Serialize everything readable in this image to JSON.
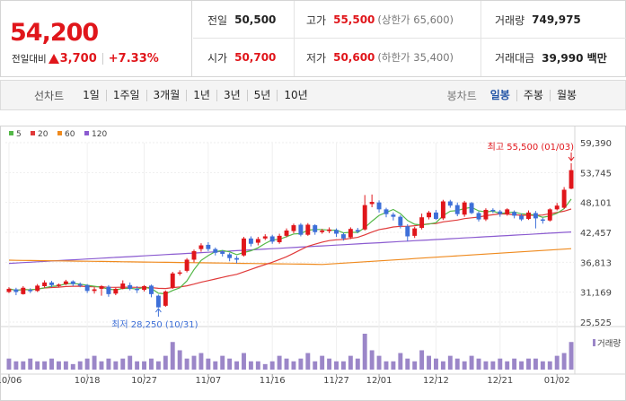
{
  "summary": {
    "price": "54,200",
    "change_label": "전일대비",
    "change_amount": "3,700",
    "change_percent": "+7.33%",
    "up_color": "#e0161b"
  },
  "stats": {
    "prev_close_label": "전일",
    "prev_close": "50,500",
    "high_label": "고가",
    "high": "55,500",
    "high_sub": "(상한가 65,600)",
    "volume_label": "거래량",
    "volume": "749,975",
    "open_label": "시가",
    "open": "50,700",
    "low_label": "저가",
    "low": "50,600",
    "low_sub": "(하한가 35,400)",
    "amount_label": "거래대금",
    "amount": "39,990 백만"
  },
  "tabs": {
    "line_label": "선차트",
    "line_tabs": [
      "1일",
      "1주일",
      "3개월",
      "1년",
      "3년",
      "5년",
      "10년"
    ],
    "candle_label": "봉차트",
    "candle_tabs": [
      "일봉",
      "주봉",
      "월봉"
    ],
    "active_candle": "일봉"
  },
  "chart_data": {
    "type": "candlestick",
    "legend": [
      {
        "name": "5",
        "color": "#54b848"
      },
      {
        "name": "20",
        "color": "#e03a3a"
      },
      {
        "name": "60",
        "color": "#ef8a1e"
      },
      {
        "name": "120",
        "color": "#8b5bd0"
      }
    ],
    "y_ticks": [
      "59,390",
      "53,745",
      "48,101",
      "42,457",
      "36,813",
      "31,169",
      "25,525"
    ],
    "ylim": [
      25525,
      59390
    ],
    "x_ticks": [
      "10/06",
      "10/18",
      "10/27",
      "11/07",
      "11/16",
      "11/27",
      "12/01",
      "12/12",
      "12/21",
      "01/02"
    ],
    "high_annotation": "최고 55,500 (01/03)",
    "low_annotation": "최저 28,250 (10/31)",
    "volume_label": "거래량",
    "candles": [
      {
        "o": 31200,
        "c": 31800,
        "h": 32100,
        "l": 31000
      },
      {
        "o": 31700,
        "c": 31200,
        "h": 32000,
        "l": 30600
      },
      {
        "o": 30800,
        "c": 32000,
        "h": 32300,
        "l": 30700
      },
      {
        "o": 31600,
        "c": 31400,
        "h": 31900,
        "l": 31000
      },
      {
        "o": 31400,
        "c": 32400,
        "h": 32700,
        "l": 31200
      },
      {
        "o": 32300,
        "c": 33000,
        "h": 33400,
        "l": 32000
      },
      {
        "o": 33000,
        "c": 32500,
        "h": 33300,
        "l": 32100
      },
      {
        "o": 32500,
        "c": 32600,
        "h": 32800,
        "l": 32100
      },
      {
        "o": 32700,
        "c": 33200,
        "h": 33500,
        "l": 32500
      },
      {
        "o": 33200,
        "c": 32700,
        "h": 33400,
        "l": 32300
      },
      {
        "o": 32700,
        "c": 32400,
        "h": 33000,
        "l": 32100
      },
      {
        "o": 32500,
        "c": 31400,
        "h": 32700,
        "l": 31000
      },
      {
        "o": 31400,
        "c": 31700,
        "h": 32100,
        "l": 30900
      },
      {
        "o": 31800,
        "c": 32300,
        "h": 32500,
        "l": 30500
      },
      {
        "o": 32200,
        "c": 30800,
        "h": 32500,
        "l": 30300
      },
      {
        "o": 30900,
        "c": 31800,
        "h": 32000,
        "l": 30600
      },
      {
        "o": 31800,
        "c": 32800,
        "h": 33400,
        "l": 31700
      },
      {
        "o": 32500,
        "c": 31800,
        "h": 33000,
        "l": 31500
      },
      {
        "o": 31800,
        "c": 31600,
        "h": 32300,
        "l": 31000
      },
      {
        "o": 31600,
        "c": 32300,
        "h": 32500,
        "l": 31300
      },
      {
        "o": 32400,
        "c": 30800,
        "h": 32600,
        "l": 30200
      },
      {
        "o": 30500,
        "c": 28300,
        "h": 30700,
        "l": 28250
      },
      {
        "o": 28600,
        "c": 31300,
        "h": 31500,
        "l": 28400
      },
      {
        "o": 32000,
        "c": 34700,
        "h": 35000,
        "l": 31800
      },
      {
        "o": 34700,
        "c": 34900,
        "h": 35300,
        "l": 34300
      },
      {
        "o": 35200,
        "c": 37300,
        "h": 37600,
        "l": 34900
      },
      {
        "o": 37300,
        "c": 38900,
        "h": 39200,
        "l": 36800
      },
      {
        "o": 39300,
        "c": 40000,
        "h": 40400,
        "l": 38800
      },
      {
        "o": 40100,
        "c": 39300,
        "h": 40600,
        "l": 38900
      },
      {
        "o": 39300,
        "c": 38600,
        "h": 39600,
        "l": 38100
      },
      {
        "o": 38800,
        "c": 38400,
        "h": 39100,
        "l": 37900
      },
      {
        "o": 38300,
        "c": 37600,
        "h": 38600,
        "l": 37000
      },
      {
        "o": 37600,
        "c": 37300,
        "h": 38000,
        "l": 36600
      },
      {
        "o": 38100,
        "c": 41300,
        "h": 41600,
        "l": 37900
      },
      {
        "o": 41300,
        "c": 40300,
        "h": 41700,
        "l": 39800
      },
      {
        "o": 40500,
        "c": 41200,
        "h": 41600,
        "l": 40000
      },
      {
        "o": 41300,
        "c": 41700,
        "h": 42100,
        "l": 41000
      },
      {
        "o": 41700,
        "c": 40700,
        "h": 42000,
        "l": 40300
      },
      {
        "o": 40600,
        "c": 41800,
        "h": 42200,
        "l": 40300
      },
      {
        "o": 41800,
        "c": 42800,
        "h": 43200,
        "l": 41500
      },
      {
        "o": 42700,
        "c": 43800,
        "h": 44100,
        "l": 42300
      },
      {
        "o": 43900,
        "c": 42000,
        "h": 44200,
        "l": 41700
      },
      {
        "o": 42000,
        "c": 43900,
        "h": 44200,
        "l": 41800
      },
      {
        "o": 43800,
        "c": 42500,
        "h": 44000,
        "l": 42000
      },
      {
        "o": 42500,
        "c": 42800,
        "h": 43100,
        "l": 42200
      },
      {
        "o": 42700,
        "c": 43000,
        "h": 43400,
        "l": 42300
      },
      {
        "o": 42900,
        "c": 42200,
        "h": 43200,
        "l": 41600
      },
      {
        "o": 42100,
        "c": 41300,
        "h": 42400,
        "l": 40900
      },
      {
        "o": 41500,
        "c": 43100,
        "h": 43400,
        "l": 41200
      },
      {
        "o": 42900,
        "c": 42600,
        "h": 43300,
        "l": 42300
      },
      {
        "o": 43000,
        "c": 47600,
        "h": 49500,
        "l": 42800
      },
      {
        "o": 47800,
        "c": 48200,
        "h": 49600,
        "l": 47200
      },
      {
        "o": 48100,
        "c": 46800,
        "h": 48500,
        "l": 46200
      },
      {
        "o": 46800,
        "c": 45900,
        "h": 47100,
        "l": 45300
      },
      {
        "o": 45800,
        "c": 45400,
        "h": 46200,
        "l": 44700
      },
      {
        "o": 45400,
        "c": 43700,
        "h": 45700,
        "l": 43200
      },
      {
        "o": 43600,
        "c": 41700,
        "h": 44000,
        "l": 40800
      },
      {
        "o": 41800,
        "c": 43200,
        "h": 43500,
        "l": 41400
      },
      {
        "o": 43300,
        "c": 45300,
        "h": 46000,
        "l": 43000
      },
      {
        "o": 45300,
        "c": 46200,
        "h": 46500,
        "l": 44900
      },
      {
        "o": 46200,
        "c": 45000,
        "h": 46700,
        "l": 44800
      },
      {
        "o": 45100,
        "c": 48300,
        "h": 48600,
        "l": 44800
      },
      {
        "o": 48300,
        "c": 47500,
        "h": 48600,
        "l": 47100
      },
      {
        "o": 47600,
        "c": 45900,
        "h": 48100,
        "l": 45500
      },
      {
        "o": 45800,
        "c": 48100,
        "h": 48400,
        "l": 45400
      },
      {
        "o": 48000,
        "c": 46100,
        "h": 48200,
        "l": 45900
      },
      {
        "o": 46100,
        "c": 44900,
        "h": 46400,
        "l": 44500
      },
      {
        "o": 44900,
        "c": 46700,
        "h": 47000,
        "l": 44600
      },
      {
        "o": 46700,
        "c": 46500,
        "h": 47000,
        "l": 46100
      },
      {
        "o": 46400,
        "c": 45900,
        "h": 46700,
        "l": 45400
      },
      {
        "o": 45900,
        "c": 46800,
        "h": 47000,
        "l": 45600
      },
      {
        "o": 46300,
        "c": 45600,
        "h": 46600,
        "l": 45100
      },
      {
        "o": 45600,
        "c": 44900,
        "h": 46000,
        "l": 44600
      },
      {
        "o": 45000,
        "c": 46200,
        "h": 46600,
        "l": 44800
      },
      {
        "o": 46100,
        "c": 45100,
        "h": 46500,
        "l": 43200
      },
      {
        "o": 44900,
        "c": 44700,
        "h": 45200,
        "l": 44100
      },
      {
        "o": 44700,
        "c": 46800,
        "h": 47000,
        "l": 44500
      },
      {
        "o": 46800,
        "c": 47500,
        "h": 48000,
        "l": 46600
      },
      {
        "o": 47100,
        "c": 50500,
        "h": 51000,
        "l": 46900
      },
      {
        "o": 50700,
        "c": 54200,
        "h": 55500,
        "l": 50600
      }
    ],
    "volumes": [
      4,
      3,
      3,
      4,
      3,
      3,
      4,
      3,
      3,
      2,
      3,
      4,
      5,
      3,
      4,
      3,
      4,
      5,
      3,
      3,
      4,
      3,
      5,
      10,
      7,
      4,
      5,
      6,
      4,
      3,
      5,
      4,
      3,
      6,
      3,
      3,
      2,
      3,
      5,
      4,
      3,
      4,
      6,
      3,
      5,
      4,
      3,
      3,
      5,
      4,
      13,
      7,
      5,
      3,
      3,
      6,
      4,
      3,
      7,
      5,
      4,
      3,
      5,
      4,
      3,
      5,
      4,
      3,
      3,
      4,
      3,
      4,
      3,
      4,
      4,
      3,
      3,
      5,
      6,
      10
    ]
  }
}
